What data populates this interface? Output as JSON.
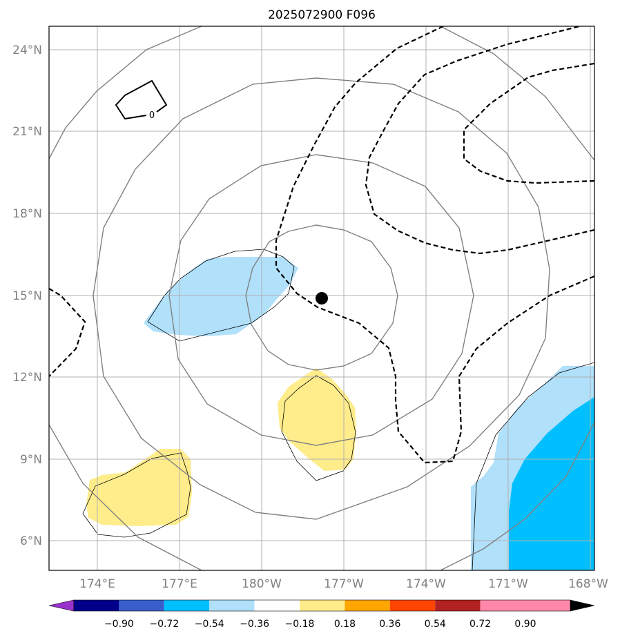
{
  "title": "2025072900 F096",
  "lat_labels": [
    "24°N",
    "21°N",
    "18°N",
    "15°N",
    "12°N",
    "9°N",
    "6°N"
  ],
  "lon_labels": [
    "174°E",
    "177°E",
    "180°W",
    "177°W",
    "174°W",
    "171°W",
    "168°W"
  ],
  "contour_label": "0",
  "colorbar": {
    "ticks": [
      "−0.90",
      "−0.72",
      "−0.54",
      "−0.36",
      "−0.18",
      "0.18",
      "0.36",
      "0.54",
      "0.72",
      "0.90"
    ],
    "colors": [
      "#9932cc",
      "#00008b",
      "#3a5fcd",
      "#00bfff",
      "#b0e0fa",
      "#ffffff",
      "#ffec8b",
      "#ffa500",
      "#ff4500",
      "#b22222",
      "#ff88aa"
    ]
  },
  "center_marker": "filled-circle"
}
